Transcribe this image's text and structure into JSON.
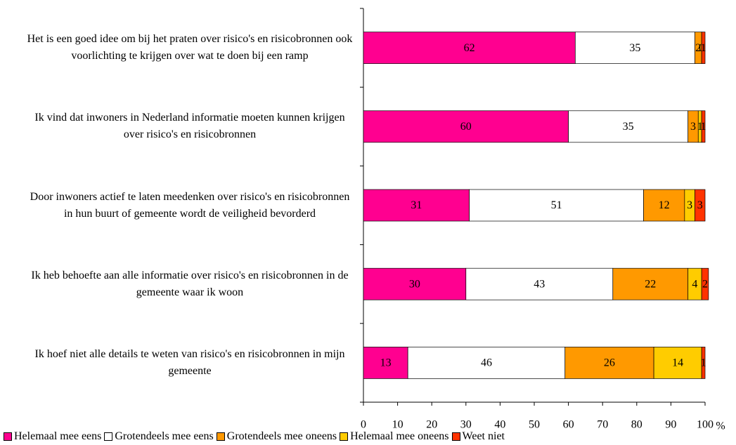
{
  "chart_data": {
    "type": "stacked_bar_horizontal",
    "categories": [
      "Het is een goed idee om bij het praten over risico's en risicobronnen ook voorlichting te krijgen over wat te doen bij een ramp",
      "Ik vind dat inwoners in Nederland informatie moeten kunnen krijgen over risico's en risicobronnen",
      "Door inwoners actief te laten meedenken over risico's en risicobronnen in hun buurt of gemeente wordt de veiligheid bevorderd",
      "Ik heb behoefte aan alle informatie over risico's en risicobronnen in de gemeente waar ik woon",
      "Ik hoef niet alle details te weten van risico's en risicobronnen in mijn gemeente"
    ],
    "series": [
      {
        "name": "Helemaal mee eens",
        "color": "#ff0090",
        "values": [
          62,
          60,
          31,
          30,
          13
        ]
      },
      {
        "name": "Grotendeels mee eens",
        "color": "#ffffff",
        "values": [
          35,
          35,
          51,
          43,
          46
        ]
      },
      {
        "name": "Grotendeels mee oneens",
        "color": "#ff9900",
        "values": [
          2,
          3,
          12,
          22,
          26
        ]
      },
      {
        "name": "Helemaal mee oneens",
        "color": "#ffcc00",
        "values": [
          0,
          1,
          3,
          4,
          14
        ]
      },
      {
        "name": "Weet niet",
        "color": "#ff3300",
        "values": [
          1,
          1,
          3,
          2,
          1
        ]
      }
    ],
    "xlabel": "%",
    "xlim": [
      0,
      100
    ],
    "xticks": [
      0,
      10,
      20,
      30,
      40,
      50,
      60,
      70,
      80,
      90,
      100
    ]
  }
}
